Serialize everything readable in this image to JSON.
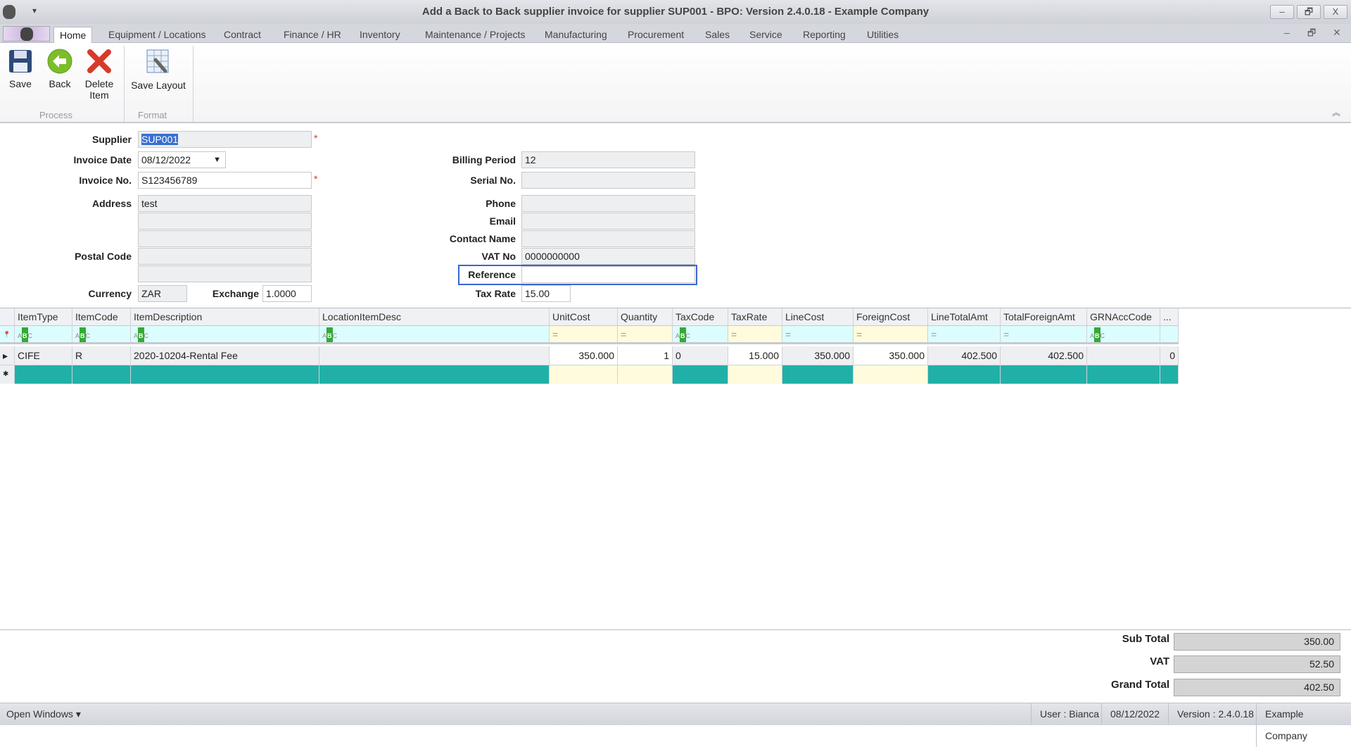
{
  "window": {
    "title": "Add a Back to Back supplier invoice for supplier SUP001 - BPO: Version 2.4.0.18 - Example Company",
    "minimize": "–",
    "restore": "🗗",
    "close": "X"
  },
  "tabs": [
    "Home",
    "Equipment / Locations",
    "Contract",
    "Finance / HR",
    "Inventory",
    "Maintenance / Projects",
    "Manufacturing",
    "Procurement",
    "Sales",
    "Service",
    "Reporting",
    "Utilities"
  ],
  "ribbon": {
    "save": "Save",
    "back": "Back",
    "delete_line1": "Delete",
    "delete_line2": "Item",
    "save_layout": "Save Layout",
    "group_process": "Process",
    "group_format": "Format"
  },
  "form": {
    "supplier_label": "Supplier",
    "supplier": "SUP001",
    "invoice_date_label": "Invoice Date",
    "invoice_date": "08/12/2022",
    "invoice_no_label": "Invoice No.",
    "invoice_no": "S123456789",
    "address_label": "Address",
    "address": [
      "test",
      "",
      "",
      ""
    ],
    "postal_code_label": "Postal Code",
    "postal_code": "",
    "currency_label": "Currency",
    "currency": "ZAR",
    "exchange_label": "Exchange",
    "exchange": "1.0000",
    "billing_period_label": "Billing Period",
    "billing_period": "12",
    "serial_no_label": "Serial No.",
    "serial_no": "",
    "phone_label": "Phone",
    "phone": "",
    "email_label": "Email",
    "email": "",
    "contact_name_label": "Contact Name",
    "contact_name": "",
    "vat_no_label": "VAT No",
    "vat_no": "0000000000",
    "reference_label": "Reference",
    "reference": "",
    "tax_rate_label": "Tax Rate",
    "tax_rate": "15.00",
    "required_mark": "*"
  },
  "grid": {
    "columns": [
      "ItemType",
      "ItemCode",
      "ItemDescription",
      "LocationItemDesc",
      "UnitCost",
      "Quantity",
      "TaxCode",
      "TaxRate",
      "LineCost",
      "ForeignCost",
      "LineTotalAmt",
      "TotalForeignAmt",
      "GRNAccCode",
      "..."
    ],
    "rows": [
      [
        "CIFE",
        "R",
        "2020-10204-Rental Fee",
        "",
        "350.000",
        "1",
        "0",
        "15.000",
        "350.000",
        "350.000",
        "402.500",
        "402.500",
        "",
        "0"
      ]
    ]
  },
  "totals": {
    "sub_total_label": "Sub Total",
    "sub_total": "350.00",
    "vat_label": "VAT",
    "vat": "52.50",
    "grand_total_label": "Grand Total",
    "grand_total": "402.50"
  },
  "status": {
    "open_windows": "Open Windows ▾",
    "user": "User : Bianca",
    "date": "08/12/2022",
    "version": "Version : 2.4.0.18",
    "company": "Example Company"
  }
}
